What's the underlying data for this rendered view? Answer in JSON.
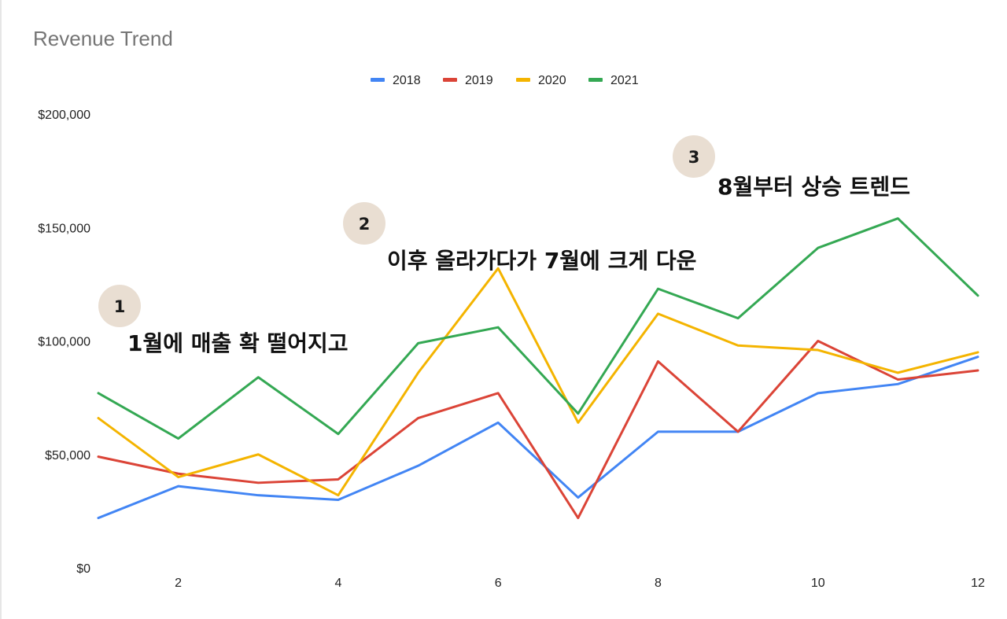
{
  "chart_data": {
    "type": "line",
    "title": "Revenue Trend",
    "xlabel": "",
    "ylabel": "",
    "x": [
      1,
      2,
      3,
      4,
      5,
      6,
      7,
      8,
      9,
      10,
      11,
      12
    ],
    "x_tick_labels": [
      "2",
      "4",
      "6",
      "8",
      "10",
      "12"
    ],
    "x_ticks": [
      2,
      4,
      6,
      8,
      10,
      12
    ],
    "xlim": [
      1,
      12
    ],
    "ylim": [
      0,
      200000
    ],
    "y_ticks": [
      0,
      50000,
      100000,
      150000,
      200000
    ],
    "y_tick_labels": [
      "$0",
      "$50,000",
      "$100,000",
      "$150,000",
      "$200,000"
    ],
    "grid": false,
    "legend_position": "top",
    "series": [
      {
        "name": "2018",
        "color": "#4285f4",
        "values": [
          22000,
          36000,
          32000,
          30000,
          45000,
          64000,
          31000,
          60000,
          60000,
          77000,
          81000,
          93000
        ]
      },
      {
        "name": "2019",
        "color": "#db4437",
        "values": [
          49000,
          41500,
          37500,
          39000,
          66000,
          77000,
          22000,
          91000,
          60000,
          100000,
          83000,
          87000
        ]
      },
      {
        "name": "2020",
        "color": "#f4b400",
        "values": [
          66000,
          40000,
          50000,
          32000,
          86000,
          132000,
          64000,
          112000,
          98000,
          96000,
          86000,
          95000
        ]
      },
      {
        "name": "2021",
        "color": "#34a853",
        "values": [
          77000,
          57000,
          84000,
          59000,
          99000,
          106000,
          68000,
          123000,
          110000,
          141000,
          154000,
          120000
        ]
      }
    ],
    "annotations": [
      {
        "number": "1",
        "text": "1월에 매출 확 떨어지고"
      },
      {
        "number": "2",
        "text": "이후 올라가다가 7월에 크게 다운"
      },
      {
        "number": "3",
        "text": "8월부터 상승 트렌드"
      }
    ]
  }
}
